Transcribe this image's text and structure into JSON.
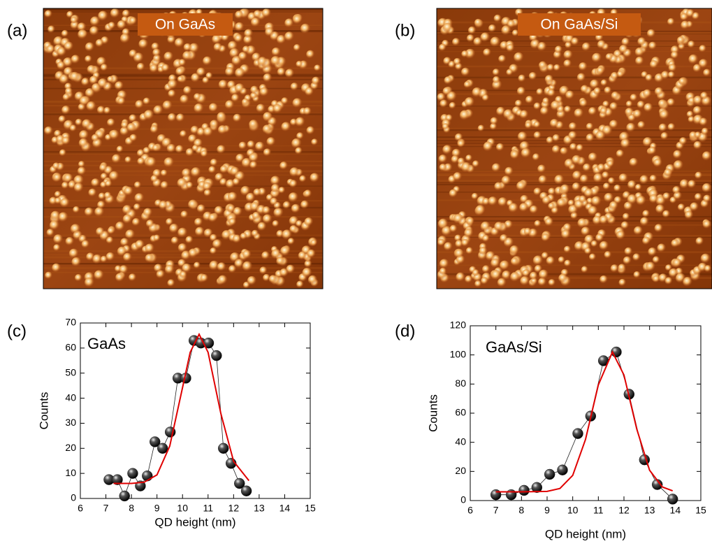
{
  "images": [
    {
      "panel_label": "(a)",
      "caption": "On GaAs"
    },
    {
      "panel_label": "(b)",
      "caption": "On GaAs/Si"
    }
  ],
  "chart_data": [
    {
      "type": "scatter",
      "panel_label": "(c)",
      "xlabel": "QD height (nm)",
      "ylabel": "Counts",
      "xlim": [
        6,
        15
      ],
      "xticks": [
        6,
        7,
        8,
        9,
        10,
        11,
        12,
        13,
        14,
        15
      ],
      "ylim": [
        0,
        70
      ],
      "yticks": [
        0,
        10,
        20,
        30,
        40,
        50,
        60,
        70
      ],
      "series": [
        {
          "name": "GaAs",
          "color": "#222222",
          "x": [
            7.12,
            7.45,
            7.73,
            8.05,
            8.35,
            8.62,
            8.92,
            9.22,
            9.52,
            9.82,
            10.13,
            10.45,
            10.72,
            11.02,
            11.33,
            11.6,
            11.9,
            12.23,
            12.5
          ],
          "values": [
            7.5,
            7.5,
            1,
            10,
            5,
            9,
            22.6,
            20,
            26.5,
            48,
            48,
            63,
            62,
            62,
            57,
            20,
            14,
            6,
            3
          ]
        },
        {
          "color": "#e00000",
          "x": [
            7.3,
            8.0,
            8.5,
            9.0,
            9.5,
            10.0,
            10.3,
            10.65,
            11.0,
            11.5,
            12.0,
            12.6
          ],
          "values": [
            6,
            6,
            6.5,
            9.4,
            20.9,
            44.2,
            58.3,
            65.5,
            58.3,
            33.9,
            14.8,
            7.1
          ]
        }
      ]
    },
    {
      "type": "scatter",
      "panel_label": "(d)",
      "xlabel": "QD height (nm)",
      "ylabel": "Counts",
      "xlim": [
        6,
        15
      ],
      "xticks": [
        6,
        7,
        8,
        9,
        10,
        11,
        12,
        13,
        14,
        15
      ],
      "ylim": [
        0,
        120
      ],
      "yticks": [
        0,
        20,
        40,
        60,
        80,
        100,
        120
      ],
      "series": [
        {
          "name": "GaAs/Si",
          "color": "#222222",
          "x": [
            7.0,
            7.6,
            8.1,
            8.6,
            9.1,
            9.6,
            10.2,
            10.7,
            11.2,
            11.7,
            12.2,
            12.8,
            13.3,
            13.9
          ],
          "values": [
            4,
            4,
            7,
            9,
            18,
            21,
            46,
            58,
            96,
            102,
            73,
            28,
            11,
            1
          ]
        },
        {
          "color": "#e00000",
          "x": [
            7.0,
            8.0,
            9.0,
            9.5,
            10.0,
            10.5,
            11.0,
            11.55,
            12.0,
            12.5,
            13.0,
            13.5,
            13.9
          ],
          "values": [
            6,
            6,
            6.3,
            8.3,
            17.3,
            42,
            79.4,
            102,
            86.2,
            49.1,
            20.8,
            9.3,
            6.7
          ]
        }
      ]
    }
  ]
}
